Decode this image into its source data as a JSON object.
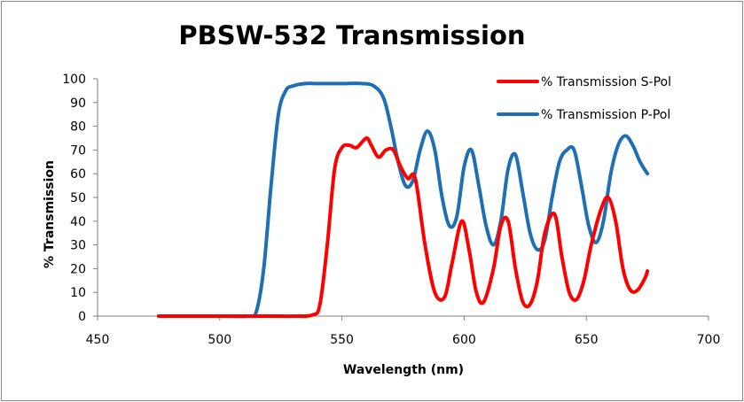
{
  "chart_data": {
    "type": "line",
    "title": "PBSW-532 Transmission",
    "xlabel": "Wavelength (nm)",
    "ylabel": "% Transmission",
    "xlim": [
      450,
      700
    ],
    "ylim": [
      0,
      100
    ],
    "xticks": [
      "450",
      "500",
      "550",
      "600",
      "650",
      "700"
    ],
    "yticks": [
      "0",
      "10",
      "20",
      "30",
      "40",
      "50",
      "60",
      "70",
      "80",
      "90",
      "100"
    ],
    "grid": false,
    "legend_position": "top-right",
    "series": [
      {
        "name": "% Transmission S-Pol",
        "color": "#ff0000",
        "x": [
          475,
          500,
          520,
          530,
          538,
          541,
          544,
          547,
          550,
          553,
          556,
          560,
          562,
          565,
          568,
          571,
          574,
          577,
          580,
          584,
          588,
          592,
          595,
          599,
          602,
          605,
          608,
          612,
          615,
          618,
          621,
          624,
          627,
          630,
          633,
          637,
          640,
          643,
          646,
          649,
          652,
          656,
          659,
          662,
          665,
          668,
          671,
          674,
          675
        ],
        "y": [
          0,
          0,
          0,
          0,
          0.5,
          5,
          30,
          62,
          71,
          72,
          71,
          75,
          72,
          67,
          70,
          70,
          63,
          58,
          58,
          30,
          10,
          8,
          22,
          40,
          28,
          10,
          6,
          20,
          38,
          40,
          20,
          6,
          5,
          15,
          35,
          43,
          25,
          10,
          7,
          15,
          30,
          45,
          50,
          40,
          20,
          11,
          11,
          16,
          19
        ]
      },
      {
        "name": "% Transmission P-Pol",
        "color": "#1f6fb5",
        "x": [
          475,
          500,
          512,
          515,
          518,
          521,
          524,
          527,
          530,
          535,
          540,
          550,
          558,
          563,
          567,
          570,
          573,
          576,
          579,
          582,
          585,
          588,
          591,
          594,
          597,
          600,
          603,
          606,
          609,
          612,
          615,
          618,
          621,
          624,
          627,
          630,
          633,
          636,
          639,
          642,
          645,
          648,
          651,
          654,
          657,
          660,
          663,
          666,
          669,
          672,
          675
        ],
        "y": [
          0,
          0,
          0,
          2,
          20,
          55,
          85,
          95,
          97,
          98,
          98,
          98,
          98,
          97,
          92,
          80,
          65,
          55,
          57,
          70,
          78,
          70,
          50,
          38,
          42,
          63,
          70,
          55,
          38,
          30,
          40,
          62,
          68,
          52,
          35,
          28,
          32,
          50,
          65,
          70,
          70,
          55,
          38,
          31,
          40,
          60,
          72,
          76,
          72,
          65,
          60
        ]
      }
    ]
  }
}
